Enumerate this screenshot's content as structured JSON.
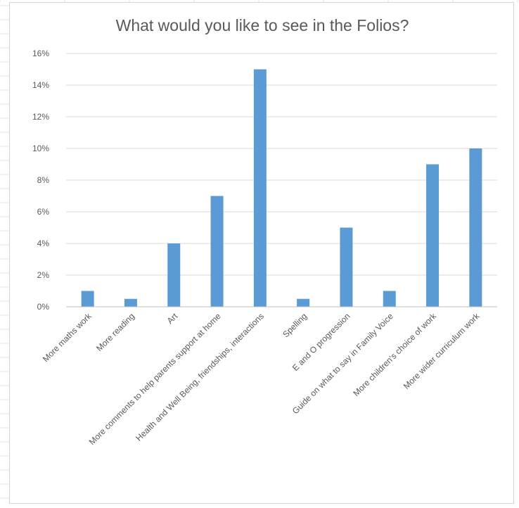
{
  "chart_data": {
    "type": "bar",
    "title": "What would you like to see in the Folios?",
    "xlabel": "",
    "ylabel": "",
    "categories": [
      "More maths work",
      "More reading",
      "Art",
      "More comments to help parents support at home",
      "Health and Well Being, friendships, interactions",
      "Spelling",
      "E and O progression",
      "Guide on  what to say in Family Voice",
      "More children's choice of work",
      "More wider curriculum work"
    ],
    "values": [
      1,
      0.5,
      4,
      7,
      15,
      0.5,
      5,
      1,
      9,
      10
    ],
    "ylim": [
      0,
      16
    ],
    "yticks": [
      0,
      2,
      4,
      6,
      8,
      10,
      12,
      14,
      16
    ],
    "ytick_labels": [
      "0%",
      "2%",
      "4%",
      "6%",
      "8%",
      "10%",
      "12%",
      "14%",
      "16%"
    ],
    "grid": true,
    "legend": "none",
    "colors": {
      "bar": "#5B9BD5",
      "gridline": "#d9d9d9",
      "axis": "#bfbfbf",
      "text": "#595959"
    }
  }
}
